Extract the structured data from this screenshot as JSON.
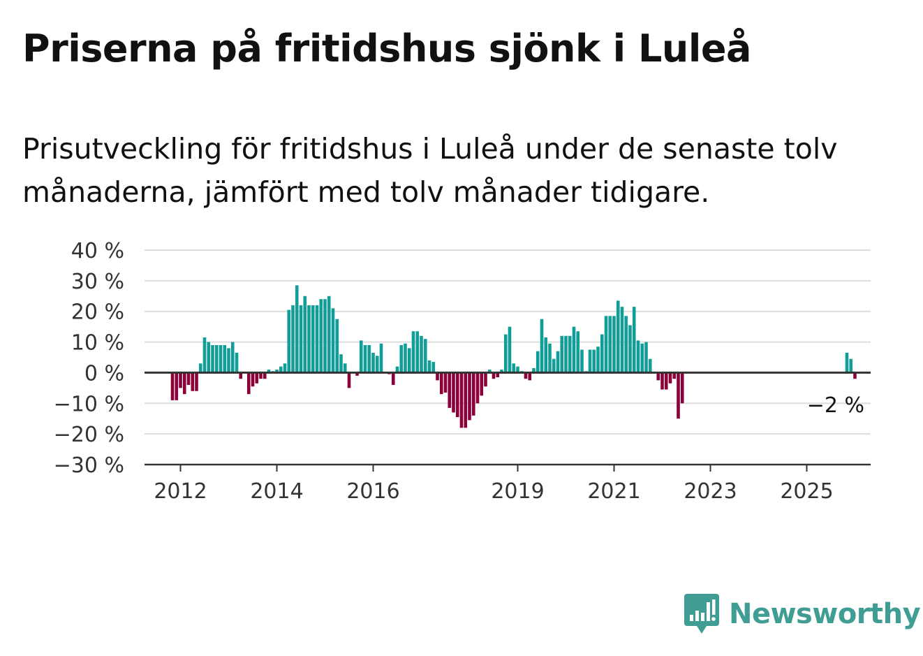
{
  "title": "Priserna på fritidshus sjönk i Luleå",
  "subtitle": "Prisutveckling för fritidshus i Luleå under de senaste tolv månaderna, jämfört med tolv månader tidigare.",
  "brand": {
    "name": "Newsworthy",
    "color": "#3f9d93",
    "icon": "bar-chart-speech-bubble-icon"
  },
  "colors": {
    "positive": "#119e98",
    "negative": "#8c0039",
    "grid": "#dddddd",
    "axis": "#333333"
  },
  "chart_data": {
    "type": "bar",
    "ylim": [
      -30,
      40
    ],
    "yticks": [
      40,
      30,
      20,
      10,
      0,
      -10,
      -20,
      -30
    ],
    "ytick_labels": [
      "40 %",
      "30 %",
      "20 %",
      "10 %",
      "0 %",
      "−10 %",
      "−20 %",
      "−30 %"
    ],
    "xtick_labels": [
      "2012",
      "2014",
      "2016",
      "2019",
      "2021",
      "2023",
      "2025"
    ],
    "grid": true,
    "start": "2011-11",
    "frequency": "monthly",
    "last_label": "−2 %",
    "values": [
      -9,
      -9,
      -5,
      -7,
      -4,
      -6,
      -6,
      3,
      11.5,
      10,
      9,
      9,
      9,
      9,
      8,
      10,
      6.5,
      -2,
      0,
      -7,
      -4.5,
      -3.5,
      -2,
      -2,
      1,
      0.5,
      1,
      2,
      3,
      20.5,
      22,
      28.5,
      22,
      25,
      22,
      22,
      22,
      24,
      24,
      25,
      21,
      17.5,
      6,
      3,
      -5,
      0,
      -1,
      10.5,
      9,
      9,
      6.5,
      5.5,
      9.5,
      0,
      -0.5,
      -4,
      2,
      9,
      9.5,
      8,
      13.5,
      13.5,
      12,
      11,
      4,
      3.5,
      -2.5,
      -7,
      -6.5,
      -11.5,
      -13,
      -14.5,
      -18,
      -18,
      -15.5,
      -14,
      -10,
      -7.5,
      -4.5,
      1,
      -2,
      -1.5,
      1,
      12.5,
      15,
      3,
      2,
      0.5,
      -2,
      -2.5,
      1.5,
      7,
      17.5,
      11.5,
      9.5,
      4.5,
      7,
      12,
      12,
      12,
      15,
      13.5,
      7.5,
      0.5,
      7.5,
      7.5,
      8.5,
      12.5,
      18.5,
      18.5,
      18.5,
      23.5,
      21.5,
      18.5,
      15.5,
      21.5,
      10.5,
      9.5,
      10,
      4.5,
      0,
      -2.5,
      -5.5,
      -5.5,
      -3.5,
      -2,
      -15,
      -10,
      null,
      null,
      null,
      null,
      null,
      null,
      null,
      null,
      null,
      null,
      null,
      null,
      null,
      null,
      null,
      null,
      null,
      null,
      null,
      null,
      null,
      null,
      null,
      null,
      null,
      null,
      null,
      null,
      null,
      null,
      null,
      null,
      null,
      null,
      null,
      null,
      null,
      null,
      null,
      null,
      6.5,
      4.5,
      -2
    ]
  }
}
